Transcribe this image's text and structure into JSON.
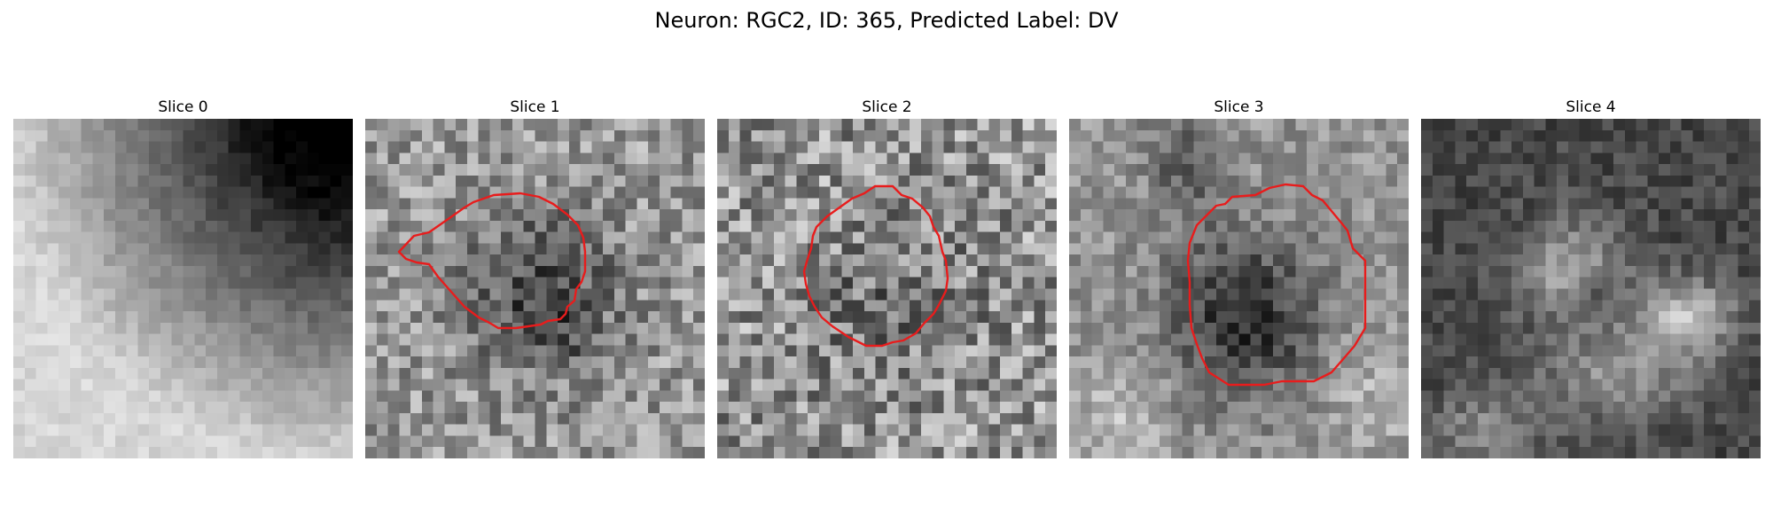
{
  "figure": {
    "suptitle": "Neuron: RGC2, ID: 365, Predicted Label: DV"
  },
  "panels": [
    {
      "title": "Slice 0"
    },
    {
      "title": "Slice 1"
    },
    {
      "title": "Slice 2"
    },
    {
      "title": "Slice 3"
    },
    {
      "title": "Slice 4"
    }
  ],
  "colors": {
    "contour": "#e81c1c",
    "background": "#ffffff"
  }
}
